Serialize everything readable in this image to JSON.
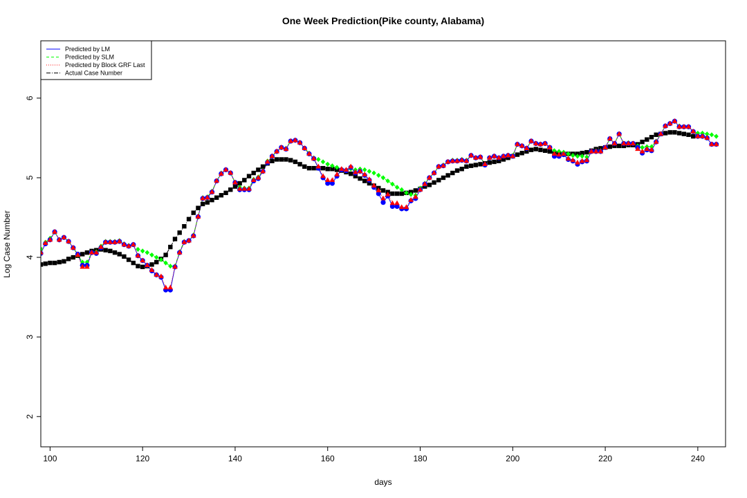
{
  "chart_data": {
    "type": "line",
    "title": "One Week Prediction(Pike county, Alabama)",
    "xlabel": "days",
    "ylabel": "Log Case Number",
    "xlim": [
      98,
      246
    ],
    "ylim": [
      1.62,
      6.72
    ],
    "xticks": [
      100,
      120,
      140,
      160,
      180,
      200,
      220,
      240
    ],
    "yticks": [
      2,
      3,
      4,
      5,
      6
    ],
    "legend_position": "top-left",
    "grid": false,
    "series": [
      {
        "name": "Predicted by LM",
        "color": "#0000ff",
        "marker": "circle",
        "line": "solid",
        "x_start": 98,
        "values": [
          4.05,
          4.17,
          4.22,
          4.32,
          4.22,
          4.25,
          4.2,
          4.12,
          4.04,
          3.9,
          3.9,
          4.06,
          4.05,
          4.12,
          4.19,
          4.19,
          4.19,
          4.2,
          4.16,
          4.14,
          4.16,
          4.02,
          3.96,
          3.9,
          3.83,
          3.78,
          3.75,
          3.59,
          3.59,
          3.88,
          4.06,
          4.19,
          4.21,
          4.27,
          4.51,
          4.74,
          4.75,
          4.82,
          4.96,
          5.05,
          5.1,
          5.06,
          4.94,
          4.85,
          4.85,
          4.85,
          4.96,
          4.99,
          5.08,
          5.19,
          5.27,
          5.33,
          5.38,
          5.36,
          5.46,
          5.47,
          5.44,
          5.37,
          5.3,
          5.24,
          5.12,
          5.0,
          4.93,
          4.93,
          5.02,
          5.1,
          5.09,
          5.13,
          5.06,
          5.08,
          5.03,
          4.97,
          4.88,
          4.8,
          4.69,
          4.77,
          4.64,
          4.64,
          4.61,
          4.61,
          4.71,
          4.74,
          4.85,
          4.92,
          5.0,
          5.06,
          5.14,
          5.15,
          5.2,
          5.21,
          5.21,
          5.22,
          5.21,
          5.28,
          5.25,
          5.26,
          5.16,
          5.25,
          5.27,
          5.25,
          5.27,
          5.28,
          5.27,
          5.42,
          5.4,
          5.37,
          5.46,
          5.43,
          5.42,
          5.43,
          5.38,
          5.27,
          5.27,
          5.29,
          5.23,
          5.21,
          5.17,
          5.2,
          5.21,
          5.33,
          5.33,
          5.33,
          5.38,
          5.49,
          5.43,
          5.55,
          5.43,
          5.43,
          5.43,
          5.38,
          5.31,
          5.35,
          5.34,
          5.45,
          5.55,
          5.65,
          5.68,
          5.71,
          5.64,
          5.64,
          5.64,
          5.58,
          5.52,
          5.52,
          5.5,
          5.42,
          5.42
        ]
      },
      {
        "name": "Predicted by SLM",
        "color": "#00ff00",
        "marker": "diamond",
        "line": "dashed",
        "x_start": 98,
        "values": [
          4.1,
          4.19,
          4.24,
          4.32,
          4.22,
          4.25,
          4.2,
          4.12,
          4.03,
          3.94,
          3.94,
          4.06,
          4.07,
          4.14,
          4.2,
          4.2,
          4.2,
          4.21,
          4.17,
          4.15,
          4.16,
          4.1,
          4.08,
          4.06,
          4.03,
          4.0,
          3.97,
          3.93,
          3.89,
          3.89,
          4.07,
          4.2,
          4.21,
          4.28,
          4.51,
          4.75,
          4.76,
          4.83,
          4.96,
          5.06,
          5.1,
          5.06,
          4.94,
          4.88,
          4.87,
          4.87,
          4.98,
          5.01,
          5.09,
          5.21,
          5.27,
          5.33,
          5.38,
          5.37,
          5.46,
          5.47,
          5.44,
          5.37,
          5.31,
          5.25,
          5.23,
          5.2,
          5.17,
          5.15,
          5.13,
          5.11,
          5.1,
          5.11,
          5.1,
          5.11,
          5.1,
          5.08,
          5.06,
          5.03,
          5.0,
          4.96,
          4.92,
          4.88,
          4.85,
          4.81,
          4.79,
          4.78,
          4.87,
          4.93,
          5.0,
          5.06,
          5.14,
          5.16,
          5.2,
          5.22,
          5.22,
          5.23,
          5.22,
          5.28,
          5.25,
          5.26,
          5.17,
          5.25,
          5.27,
          5.25,
          5.27,
          5.28,
          5.28,
          5.42,
          5.4,
          5.37,
          5.46,
          5.43,
          5.42,
          5.43,
          5.38,
          5.34,
          5.33,
          5.32,
          5.3,
          5.28,
          5.27,
          5.27,
          5.26,
          5.33,
          5.34,
          5.34,
          5.38,
          5.49,
          5.43,
          5.55,
          5.43,
          5.44,
          5.43,
          5.4,
          5.38,
          5.39,
          5.39,
          5.46,
          5.55,
          5.65,
          5.68,
          5.71,
          5.65,
          5.64,
          5.64,
          5.58,
          5.56,
          5.56,
          5.55,
          5.54,
          5.52
        ]
      },
      {
        "name": "Predicted by Block GRF Last",
        "color": "#ff0000",
        "marker": "triangle",
        "line": "dotted",
        "x_start": 98,
        "values": [
          4.06,
          4.18,
          4.22,
          4.32,
          4.22,
          4.25,
          4.2,
          4.12,
          4.03,
          3.88,
          3.88,
          4.06,
          4.06,
          4.13,
          4.19,
          4.19,
          4.19,
          4.2,
          4.16,
          4.14,
          4.16,
          4.02,
          3.96,
          3.9,
          3.84,
          3.78,
          3.76,
          3.62,
          3.62,
          3.88,
          4.06,
          4.19,
          4.21,
          4.27,
          4.51,
          4.74,
          4.75,
          4.82,
          4.96,
          5.05,
          5.1,
          5.06,
          4.94,
          4.86,
          4.86,
          4.86,
          4.97,
          5.0,
          5.08,
          5.2,
          5.27,
          5.33,
          5.38,
          5.36,
          5.46,
          5.47,
          5.44,
          5.37,
          5.3,
          5.24,
          5.14,
          5.02,
          4.97,
          4.97,
          5.04,
          5.11,
          5.1,
          5.14,
          5.07,
          5.08,
          5.04,
          4.98,
          4.9,
          4.84,
          4.74,
          4.79,
          4.68,
          4.68,
          4.63,
          4.63,
          4.72,
          4.76,
          4.85,
          4.92,
          5.0,
          5.06,
          5.14,
          5.15,
          5.2,
          5.21,
          5.21,
          5.22,
          5.21,
          5.28,
          5.25,
          5.26,
          5.17,
          5.25,
          5.27,
          5.25,
          5.27,
          5.28,
          5.27,
          5.42,
          5.4,
          5.37,
          5.46,
          5.43,
          5.42,
          5.43,
          5.38,
          5.3,
          5.29,
          5.3,
          5.24,
          5.22,
          5.19,
          5.21,
          5.22,
          5.33,
          5.33,
          5.33,
          5.38,
          5.49,
          5.43,
          5.55,
          5.43,
          5.43,
          5.43,
          5.36,
          5.33,
          5.36,
          5.35,
          5.45,
          5.55,
          5.65,
          5.68,
          5.71,
          5.64,
          5.64,
          5.64,
          5.58,
          5.52,
          5.52,
          5.5,
          5.42,
          5.42
        ]
      },
      {
        "name": "Actual Case Number",
        "color": "#000000",
        "marker": "square",
        "line": "dashdot",
        "x_start": 98,
        "values": [
          3.91,
          3.92,
          3.93,
          3.93,
          3.94,
          3.95,
          3.98,
          4.0,
          4.02,
          4.04,
          4.06,
          4.08,
          4.09,
          4.1,
          4.09,
          4.08,
          4.06,
          4.04,
          4.01,
          3.97,
          3.93,
          3.89,
          3.88,
          3.89,
          3.91,
          3.94,
          3.98,
          4.03,
          4.13,
          4.23,
          4.31,
          4.39,
          4.48,
          4.56,
          4.62,
          4.67,
          4.69,
          4.72,
          4.75,
          4.78,
          4.81,
          4.85,
          4.89,
          4.93,
          4.97,
          5.02,
          5.06,
          5.1,
          5.14,
          5.18,
          5.21,
          5.23,
          5.23,
          5.23,
          5.22,
          5.2,
          5.17,
          5.14,
          5.12,
          5.12,
          5.12,
          5.12,
          5.11,
          5.11,
          5.1,
          5.09,
          5.07,
          5.05,
          5.02,
          4.99,
          4.96,
          4.93,
          4.9,
          4.87,
          4.84,
          4.82,
          4.8,
          4.8,
          4.8,
          4.81,
          4.82,
          4.84,
          4.86,
          4.89,
          4.91,
          4.94,
          4.97,
          5.0,
          5.03,
          5.06,
          5.09,
          5.11,
          5.14,
          5.15,
          5.16,
          5.17,
          5.18,
          5.19,
          5.2,
          5.21,
          5.23,
          5.25,
          5.27,
          5.29,
          5.31,
          5.33,
          5.35,
          5.36,
          5.35,
          5.34,
          5.33,
          5.31,
          5.3,
          5.3,
          5.3,
          5.3,
          5.3,
          5.31,
          5.32,
          5.34,
          5.36,
          5.37,
          5.38,
          5.39,
          5.4,
          5.4,
          5.4,
          5.41,
          5.41,
          5.42,
          5.45,
          5.48,
          5.51,
          5.54,
          5.55,
          5.56,
          5.57,
          5.57,
          5.56,
          5.55,
          5.54,
          5.52
        ]
      }
    ]
  }
}
